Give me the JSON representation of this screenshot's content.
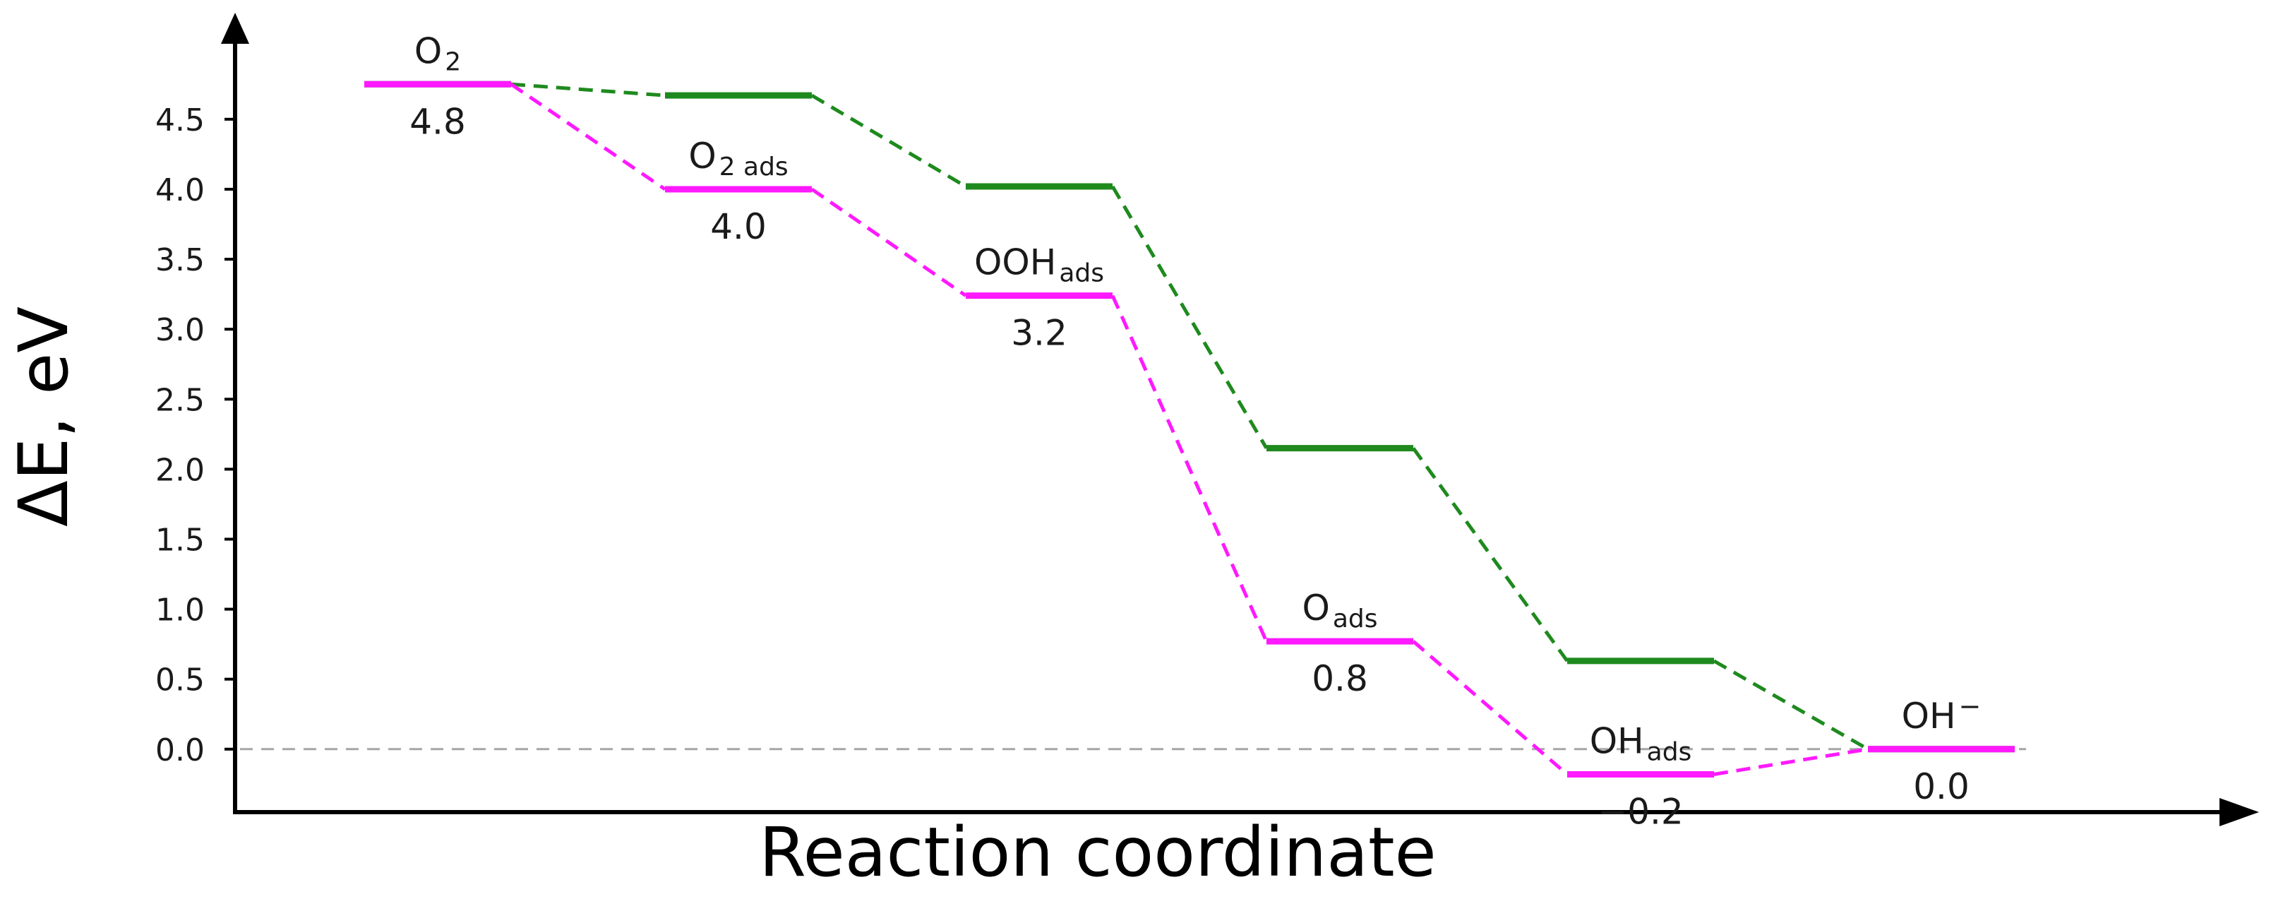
{
  "chart_data": {
    "type": "line",
    "title": "",
    "xlabel": "Reaction coordinate",
    "ylabel": "ΔE, eV",
    "ylim": [
      -0.45,
      5.15
    ],
    "yticks": [
      "0.0",
      "0.5",
      "1.0",
      "1.5",
      "2.0",
      "2.5",
      "3.0",
      "3.5",
      "4.0",
      "4.5"
    ],
    "ytick_values": [
      0.0,
      0.5,
      1.0,
      1.5,
      2.0,
      2.5,
      3.0,
      3.5,
      4.0,
      4.5
    ],
    "reference_line": {
      "y": 0.0,
      "style": "dashed",
      "color": "#a6a6a6"
    },
    "colors": {
      "green": "#1e8a1e",
      "magenta": "#ff19ff"
    },
    "x": [
      1,
      2,
      3,
      4,
      5,
      6
    ],
    "series": [
      {
        "color": "#1e8a1e",
        "values": [
          4.75,
          4.67,
          4.02,
          2.15,
          0.63,
          0.0
        ]
      },
      {
        "color": "#ff19ff",
        "values": [
          4.75,
          4.0,
          3.24,
          0.77,
          -0.18,
          0.0
        ]
      }
    ],
    "annotations": [
      {
        "id": "o2",
        "x": 1,
        "y": 4.75,
        "name": "O",
        "sub": "2",
        "value": "4.8"
      },
      {
        "id": "o2ads",
        "x": 2,
        "y": 4.0,
        "name": "O",
        "sub": "2 ads",
        "value": "4.0"
      },
      {
        "id": "oohads",
        "x": 3,
        "y": 3.24,
        "name": "OOH",
        "sub": "ads",
        "value": "3.2"
      },
      {
        "id": "oads",
        "x": 4,
        "y": 0.77,
        "name": "O",
        "sub": "ads",
        "value": "0.8"
      },
      {
        "id": "ohads",
        "x": 5,
        "y": -0.18,
        "name": "OH",
        "sub": "ads",
        "value": "−0.2"
      },
      {
        "id": "oh",
        "x": 6,
        "y": 0.0,
        "name": "OH",
        "sup": "−",
        "value": "0.0"
      }
    ]
  }
}
